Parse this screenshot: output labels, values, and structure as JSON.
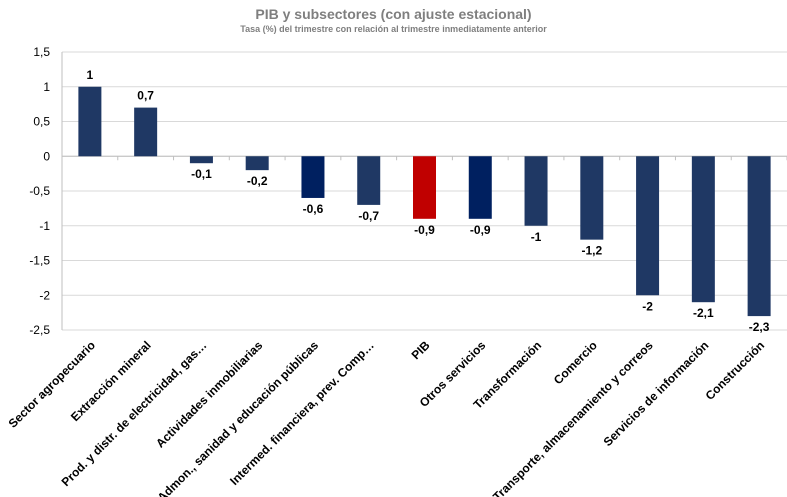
{
  "chart_data": {
    "type": "bar",
    "title": "PIB y subsectores (con ajuste estacional)",
    "subtitle": "Tasa (%) del trimestre con relación al trimestre inmediatamente anterior",
    "xlabel": "",
    "ylabel": "",
    "ylim": [
      -2.5,
      1.5
    ],
    "yticks": [
      1.5,
      1,
      0.5,
      0,
      -0.5,
      -1,
      -1.5,
      -2,
      -2.5
    ],
    "ytick_labels": [
      "1,5",
      "1",
      "0,5",
      "0",
      "-0,5",
      "-1",
      "-1,5",
      "-2",
      "-2,5"
    ],
    "grid": true,
    "categories": [
      "Sector agropecuario",
      "Extracción mineral",
      "Prod. y distr. de electricidad, gas…",
      "Actividades inmobiliarias",
      "Admon., sanidad y educación públicas",
      "Intermed. financiera, prev. Comp…",
      "PIB",
      "Otros servicios",
      "Transformación",
      "Comercio",
      "Transporte, almacenamiento y correos",
      "Servicios de información",
      "Construcción"
    ],
    "values": [
      1,
      0.7,
      -0.1,
      -0.2,
      -0.6,
      -0.7,
      -0.9,
      -0.9,
      -1,
      -1.2,
      -2,
      -2.1,
      -2.3
    ],
    "data_labels": [
      "1",
      "0,7",
      "-0,1",
      "-0,2",
      "-0,6",
      "-0,7",
      "-0,9",
      "-0,9",
      "-1",
      "-1,2",
      "-2",
      "-2,1",
      "-2,3"
    ],
    "bar_colors": [
      "#1f3864",
      "#1f3864",
      "#1f3864",
      "#1f3864",
      "#002060",
      "#1f3864",
      "#c00000",
      "#002060",
      "#1f3864",
      "#1f3864",
      "#1f3864",
      "#1f3864",
      "#1f3864"
    ]
  }
}
